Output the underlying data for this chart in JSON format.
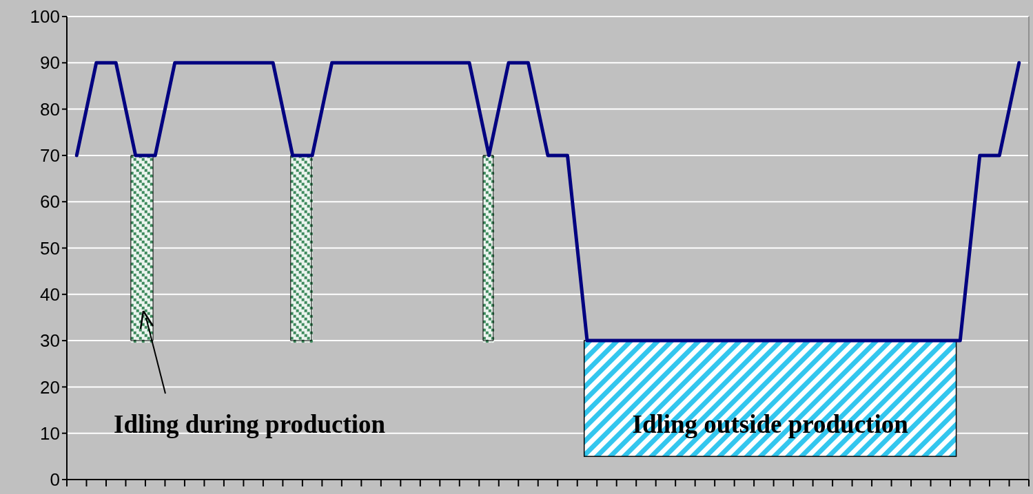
{
  "chart_data": {
    "type": "line",
    "categories": [
      null,
      null,
      null,
      null,
      null,
      null,
      null,
      null,
      null,
      null,
      null,
      null,
      null,
      null,
      null,
      null,
      null,
      null,
      null,
      null,
      null,
      null,
      null,
      null,
      null,
      null,
      null,
      null,
      null,
      null,
      null,
      null,
      null,
      null,
      null,
      null,
      null,
      null,
      null,
      null,
      null,
      null,
      null,
      null,
      null,
      null,
      null,
      null,
      null
    ],
    "series": [
      {
        "color": "#000080",
        "values": [
          70,
          90,
          90,
          70,
          70,
          90,
          90,
          90,
          90,
          90,
          90,
          70,
          70,
          90,
          90,
          90,
          90,
          90,
          90,
          90,
          90,
          70,
          90,
          90,
          70,
          70,
          30,
          30,
          30,
          30,
          30,
          30,
          30,
          30,
          30,
          30,
          30,
          30,
          30,
          30,
          30,
          30,
          30,
          30,
          30,
          30,
          70,
          70,
          90
        ]
      }
    ],
    "ylim": [
      0,
      100
    ],
    "yticks": [
      0,
      10,
      20,
      30,
      40,
      50,
      60,
      70,
      80,
      90,
      100
    ],
    "grid": "y",
    "tick_labels": "y",
    "annotations": [
      "Idling during production",
      "Idling outside production"
    ]
  }
}
